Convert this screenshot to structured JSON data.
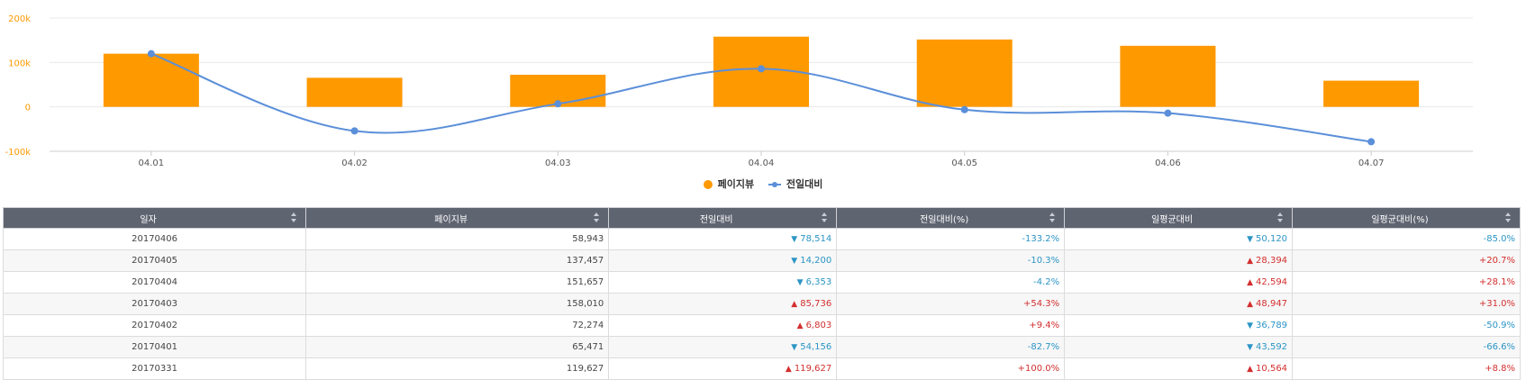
{
  "chart_data": {
    "type": "bar",
    "categories": [
      "04.01",
      "04.02",
      "04.03",
      "04.04",
      "04.05",
      "04.06",
      "04.07"
    ],
    "series": [
      {
        "name": "페이지뷰",
        "type": "bar",
        "color": "#FF9900",
        "values": [
          119627,
          65471,
          72274,
          158010,
          151657,
          137457,
          58943
        ]
      },
      {
        "name": "전일대비",
        "type": "line",
        "color": "#5B8FD9",
        "values": [
          119627,
          -54156,
          6803,
          85736,
          -6353,
          -14200,
          -78514
        ]
      }
    ],
    "yticks": [
      "200k",
      "100k",
      "0",
      "-100k"
    ],
    "ylim": [
      -100000,
      200000
    ],
    "grid": true,
    "legend_position": "bottom"
  },
  "legend": [
    {
      "label": "페이지뷰"
    },
    {
      "label": "전일대비"
    }
  ],
  "table": {
    "headers": [
      "일자",
      "페이지뷰",
      "전일대비",
      "전일대비(%)",
      "일평균대비",
      "일평균대비(%)"
    ],
    "rows": [
      {
        "date": "20170406",
        "pageviews": "58,943",
        "dod": "78,514",
        "dod_dir": "down",
        "dod_pct": "-133.2%",
        "avg": "50,120",
        "avg_dir": "down",
        "avg_pct": "-85.0%"
      },
      {
        "date": "20170405",
        "pageviews": "137,457",
        "dod": "14,200",
        "dod_dir": "down",
        "dod_pct": "-10.3%",
        "avg": "28,394",
        "avg_dir": "up",
        "avg_pct": "+20.7%"
      },
      {
        "date": "20170404",
        "pageviews": "151,657",
        "dod": "6,353",
        "dod_dir": "down",
        "dod_pct": "-4.2%",
        "avg": "42,594",
        "avg_dir": "up",
        "avg_pct": "+28.1%"
      },
      {
        "date": "20170403",
        "pageviews": "158,010",
        "dod": "85,736",
        "dod_dir": "up",
        "dod_pct": "+54.3%",
        "avg": "48,947",
        "avg_dir": "up",
        "avg_pct": "+31.0%"
      },
      {
        "date": "20170402",
        "pageviews": "72,274",
        "dod": "6,803",
        "dod_dir": "up",
        "dod_pct": "+9.4%",
        "avg": "36,789",
        "avg_dir": "down",
        "avg_pct": "-50.9%"
      },
      {
        "date": "20170401",
        "pageviews": "65,471",
        "dod": "54,156",
        "dod_dir": "down",
        "dod_pct": "-82.7%",
        "avg": "43,592",
        "avg_dir": "down",
        "avg_pct": "-66.6%"
      },
      {
        "date": "20170331",
        "pageviews": "119,627",
        "dod": "119,627",
        "dod_dir": "up",
        "dod_pct": "+100.0%",
        "avg": "10,564",
        "avg_dir": "up",
        "avg_pct": "+8.8%"
      }
    ]
  },
  "icons": {
    "up": "triangle-up-icon",
    "down": "triangle-down-icon",
    "sort": "sort-icon"
  },
  "colors": {
    "bar": "#FF9900",
    "line": "#5B8FD9",
    "up": "#d32f2f",
    "down": "#2b95c6",
    "header_bg": "#5F6471"
  }
}
